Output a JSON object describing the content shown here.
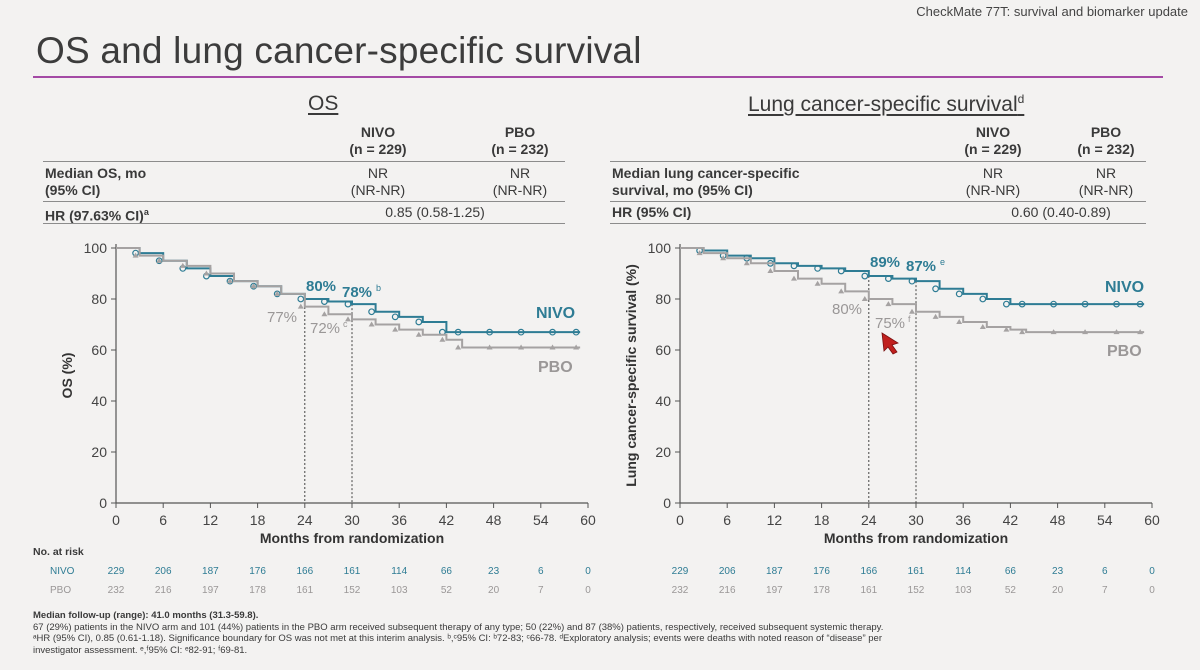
{
  "header": "CheckMate 77T: survival and biomarker update",
  "title": "OS and lung cancer-specific survival",
  "colors": {
    "nivo": "#2e7c94",
    "pbo": "#a5a2a2",
    "accent": "#a44aa5"
  },
  "os_panel": {
    "title": "OS",
    "table": {
      "col1": "NIVO",
      "col1n": "(n = 229)",
      "col2": "PBO",
      "col2n": "(n = 232)",
      "row1_label1": "Median OS, mo",
      "row1_label2": "(95% CI)",
      "row1_v1a": "NR",
      "row1_v1b": "(NR-NR)",
      "row1_v2a": "NR",
      "row1_v2b": "(NR-NR)",
      "hr_label": "HR (97.63% CI)",
      "hr_sup": "a",
      "hr_value": "0.85 (0.58-1.25)"
    },
    "annotations": {
      "nivo24": "80%",
      "nivo30": "78%",
      "nivo30_sup": "b",
      "pbo24": "77%",
      "pbo30": "72%",
      "pbo30_sup": "c",
      "nivo_label": "NIVO",
      "pbo_label": "PBO"
    }
  },
  "lcss_panel": {
    "title": "Lung cancer-specific survival",
    "title_sup": "d",
    "table": {
      "col1": "NIVO",
      "col1n": "(n = 229)",
      "col2": "PBO",
      "col2n": "(n = 232)",
      "row1_label1": "Median lung cancer-specific",
      "row1_label2": "survival, mo (95% CI)",
      "row1_v1a": "NR",
      "row1_v1b": "(NR-NR)",
      "row1_v2a": "NR",
      "row1_v2b": "(NR-NR)",
      "hr_label": "HR (95% CI)",
      "hr_value": "0.60 (0.40-0.89)"
    },
    "annotations": {
      "nivo24": "89%",
      "nivo30": "87%",
      "nivo30_sup": "e",
      "pbo24": "80%",
      "pbo30": "75%",
      "pbo30_sup": "f",
      "nivo_label": "NIVO",
      "pbo_label": "PBO"
    }
  },
  "risk": {
    "title": "No. at risk",
    "nivo_label": "NIVO",
    "pbo_label": "PBO"
  },
  "footnotes": [
    "Median follow-up (range): 41.0 months (31.3-59.8).",
    "67 (29%) patients in the NIVO arm and 101 (44%) patients in the PBO arm received subsequent therapy of any type; 50 (22%) and 87 (38%) patients, respectively, received subsequent systemic therapy.",
    "ᵃHR (95% CI), 0.85 (0.61-1.18). Significance boundary for OS was not met at this interim analysis. ᵇ,ᶜ95% CI: ᵇ72-83; ᶜ66-78. ᵈExploratory analysis; events were deaths with noted reason of “disease” per",
    "investigator assessment. ᵉ,ᶠ95% CI: ᵉ82-91; ᶠ69-81."
  ],
  "chart_data": [
    {
      "type": "line",
      "title": "OS",
      "xlabel": "Months from randomization",
      "ylabel": "OS (%)",
      "xlim": [
        0,
        60
      ],
      "ylim": [
        0,
        100
      ],
      "xticks": [
        0,
        6,
        12,
        18,
        24,
        30,
        36,
        42,
        48,
        54,
        60
      ],
      "yticks": [
        0,
        20,
        40,
        60,
        80,
        100
      ],
      "series": [
        {
          "name": "NIVO",
          "x": [
            0,
            3,
            6,
            9,
            12,
            15,
            18,
            21,
            24,
            27,
            30,
            33,
            36,
            39,
            42,
            44,
            48,
            52,
            56,
            59
          ],
          "y": [
            100,
            98,
            95,
            92,
            89,
            87,
            85,
            82,
            80,
            79,
            78,
            75,
            73,
            71,
            67,
            67,
            67,
            67,
            67,
            67
          ]
        },
        {
          "name": "PBO",
          "x": [
            0,
            3,
            6,
            9,
            12,
            15,
            18,
            21,
            24,
            27,
            30,
            33,
            36,
            39,
            42,
            44,
            48,
            52,
            56,
            59
          ],
          "y": [
            100,
            97,
            95,
            93,
            90,
            87,
            85,
            82,
            77,
            74,
            72,
            70,
            68,
            66,
            64,
            61,
            61,
            61,
            61,
            61
          ]
        }
      ],
      "risk_table": {
        "times": [
          0,
          6,
          12,
          18,
          24,
          30,
          36,
          42,
          48,
          54,
          60
        ],
        "NIVO": [
          229,
          206,
          187,
          176,
          166,
          161,
          114,
          66,
          23,
          6,
          0
        ],
        "PBO": [
          232,
          216,
          197,
          178,
          161,
          152,
          103,
          52,
          20,
          7,
          0
        ]
      }
    },
    {
      "type": "line",
      "title": "Lung cancer-specific survival",
      "xlabel": "Months from randomization",
      "ylabel": "Lung cancer-specific survival (%)",
      "xlim": [
        0,
        60
      ],
      "ylim": [
        0,
        100
      ],
      "xticks": [
        0,
        6,
        12,
        18,
        24,
        30,
        36,
        42,
        48,
        54,
        60
      ],
      "yticks": [
        0,
        20,
        40,
        60,
        80,
        100
      ],
      "series": [
        {
          "name": "NIVO",
          "x": [
            0,
            3,
            6,
            9,
            12,
            15,
            18,
            21,
            24,
            27,
            30,
            33,
            36,
            39,
            42,
            44,
            48,
            52,
            56,
            59
          ],
          "y": [
            100,
            99,
            97,
            96,
            94,
            93,
            92,
            91,
            89,
            88,
            87,
            84,
            82,
            80,
            78,
            78,
            78,
            78,
            78,
            78
          ]
        },
        {
          "name": "PBO",
          "x": [
            0,
            3,
            6,
            9,
            12,
            15,
            18,
            21,
            24,
            27,
            30,
            33,
            36,
            39,
            42,
            44,
            48,
            52,
            56,
            59
          ],
          "y": [
            100,
            98,
            96,
            94,
            91,
            88,
            86,
            83,
            80,
            78,
            75,
            73,
            71,
            69,
            68,
            67,
            67,
            67,
            67,
            67
          ]
        }
      ],
      "risk_table": {
        "times": [
          0,
          6,
          12,
          18,
          24,
          30,
          36,
          42,
          48,
          54,
          60
        ],
        "NIVO": [
          229,
          206,
          187,
          176,
          166,
          161,
          114,
          66,
          23,
          6,
          0
        ],
        "PBO": [
          232,
          216,
          197,
          178,
          161,
          152,
          103,
          52,
          20,
          7,
          0
        ]
      }
    }
  ]
}
